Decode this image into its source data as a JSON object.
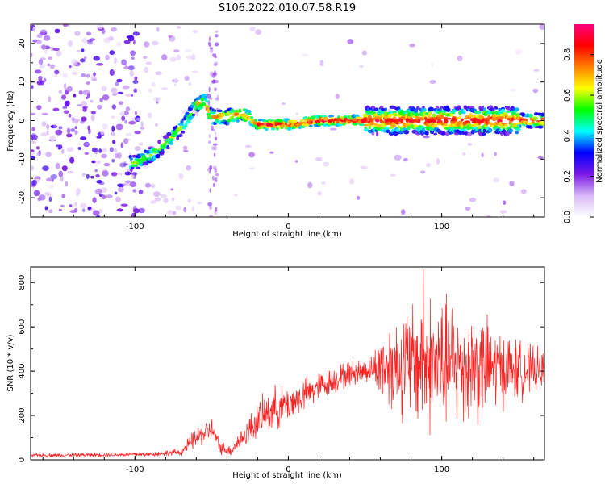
{
  "figure": {
    "title": "S106.2022.010.07.58.R19"
  },
  "colors": {
    "snr_line": "#ff2020",
    "axes": "#000000"
  },
  "chart_data": [
    {
      "type": "heatmap",
      "title": "",
      "xlabel": "Height of straight line (km)",
      "ylabel": "Frequency (Hz)",
      "xlim": [
        -168,
        167
      ],
      "ylim": [
        -25,
        25
      ],
      "x_ticks": [
        -100,
        0,
        100
      ],
      "y_ticks": [
        -20,
        -10,
        0,
        10,
        20
      ],
      "colorbar": {
        "label": "Normalized spectral amplitude",
        "range": [
          0,
          0.95
        ],
        "ticks": [
          "0.0",
          "0.2",
          "0.4",
          "0.6",
          "0.8"
        ],
        "colormap": [
          "#ffffff",
          "#d8b8f8",
          "#7a1ae6",
          "#0000ff",
          "#00ffff",
          "#00ff00",
          "#ffff00",
          "#ff8000",
          "#ff0000",
          "#ff0080"
        ]
      },
      "ridge": [
        {
          "x": -100,
          "y": -11
        },
        {
          "x": -90,
          "y": -9
        },
        {
          "x": -80,
          "y": -6
        },
        {
          "x": -70,
          "y": -2
        },
        {
          "x": -60,
          "y": 4
        },
        {
          "x": -55,
          "y": 5
        },
        {
          "x": -50,
          "y": 1
        },
        {
          "x": -40,
          "y": 1
        },
        {
          "x": -30,
          "y": 2
        },
        {
          "x": -20,
          "y": -1
        },
        {
          "x": 0,
          "y": -1
        },
        {
          "x": 20,
          "y": 0
        },
        {
          "x": 50,
          "y": 0
        },
        {
          "x": 100,
          "y": 0
        },
        {
          "x": 167,
          "y": 0
        }
      ]
    },
    {
      "type": "line",
      "title": "",
      "xlabel": "Height of straight line (km)",
      "ylabel": "SNR (10 * v/v)",
      "xlim": [
        -168,
        167
      ],
      "ylim": [
        0,
        870
      ],
      "x_ticks": [
        -100,
        0,
        100
      ],
      "y_ticks": [
        0,
        200,
        400,
        600,
        800
      ],
      "envelope": [
        {
          "x": -168,
          "y": 20,
          "spread": 10
        },
        {
          "x": -90,
          "y": 25,
          "spread": 12
        },
        {
          "x": -70,
          "y": 35,
          "spread": 20
        },
        {
          "x": -60,
          "y": 100,
          "spread": 60
        },
        {
          "x": -50,
          "y": 140,
          "spread": 60
        },
        {
          "x": -45,
          "y": 60,
          "spread": 40
        },
        {
          "x": -38,
          "y": 40,
          "spread": 30
        },
        {
          "x": -30,
          "y": 100,
          "spread": 60
        },
        {
          "x": -20,
          "y": 180,
          "spread": 100
        },
        {
          "x": -10,
          "y": 230,
          "spread": 120
        },
        {
          "x": 0,
          "y": 250,
          "spread": 100
        },
        {
          "x": 20,
          "y": 330,
          "spread": 80
        },
        {
          "x": 40,
          "y": 390,
          "spread": 70
        },
        {
          "x": 55,
          "y": 410,
          "spread": 70
        },
        {
          "x": 60,
          "y": 420,
          "spread": 200
        },
        {
          "x": 80,
          "y": 440,
          "spread": 330
        },
        {
          "x": 95,
          "y": 430,
          "spread": 380
        },
        {
          "x": 110,
          "y": 430,
          "spread": 330
        },
        {
          "x": 125,
          "y": 420,
          "spread": 300
        },
        {
          "x": 140,
          "y": 410,
          "spread": 200
        },
        {
          "x": 167,
          "y": 400,
          "spread": 100
        }
      ],
      "peak": {
        "x": 88,
        "y": 860
      }
    }
  ]
}
